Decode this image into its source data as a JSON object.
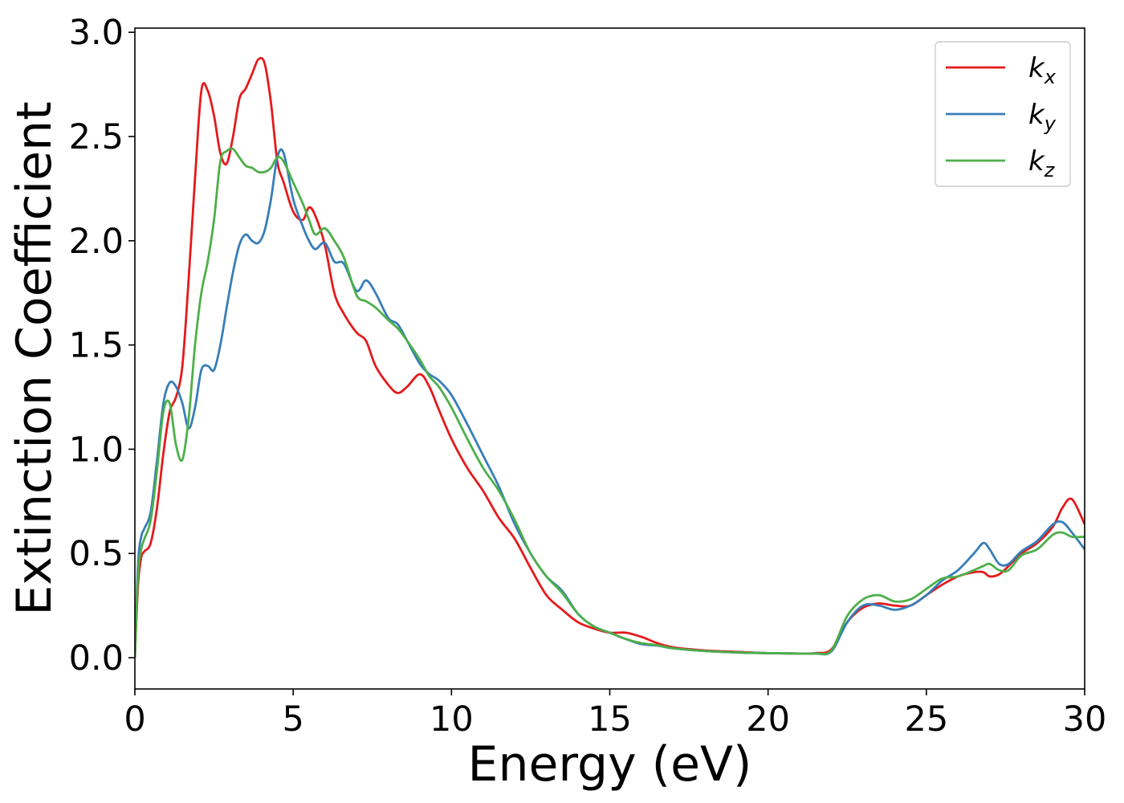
{
  "chart_data": {
    "type": "line",
    "title": "",
    "xlabel": "Energy (eV)",
    "ylabel": "Extinction Coefficient",
    "xlim": [
      0,
      30
    ],
    "ylim": [
      -0.15,
      3.02
    ],
    "xticks": [
      0,
      5,
      10,
      15,
      20,
      25,
      30
    ],
    "xtick_labels": [
      "0",
      "5",
      "10",
      "15",
      "20",
      "25",
      "30"
    ],
    "yticks": [
      0.0,
      0.5,
      1.0,
      1.5,
      2.0,
      2.5,
      3.0
    ],
    "ytick_labels": [
      "0.0",
      "0.5",
      "1.0",
      "1.5",
      "2.0",
      "2.5",
      "3.0"
    ],
    "grid": false,
    "legend_position": "top-right",
    "series": [
      {
        "name": "k",
        "subscript": "x",
        "color": "#e41a1c",
        "x": [
          0,
          0.1,
          0.2,
          0.3,
          0.5,
          0.7,
          0.9,
          1.1,
          1.3,
          1.5,
          1.7,
          1.9,
          2.1,
          2.3,
          2.5,
          2.7,
          2.9,
          3.1,
          3.3,
          3.5,
          3.7,
          3.9,
          4.1,
          4.3,
          4.5,
          4.7,
          5.0,
          5.3,
          5.5,
          5.7,
          6.0,
          6.3,
          6.6,
          7.0,
          7.3,
          7.6,
          8.0,
          8.3,
          8.6,
          9.0,
          9.3,
          9.6,
          10.0,
          10.5,
          11.0,
          11.5,
          12.0,
          12.5,
          13.0,
          13.5,
          14.0,
          14.5,
          15.0,
          15.5,
          16.0,
          16.5,
          17.0,
          18.0,
          19.0,
          20.0,
          21.0,
          21.5,
          22.0,
          22.5,
          23.0,
          23.5,
          24.0,
          24.5,
          25.0,
          25.5,
          26.0,
          26.5,
          26.8,
          27.0,
          27.3,
          27.6,
          28.0,
          28.5,
          29.0,
          29.3,
          29.6,
          30.0
        ],
        "y": [
          0.0,
          0.35,
          0.48,
          0.51,
          0.55,
          0.72,
          0.98,
          1.18,
          1.25,
          1.4,
          1.82,
          2.3,
          2.72,
          2.72,
          2.6,
          2.42,
          2.37,
          2.5,
          2.68,
          2.73,
          2.8,
          2.87,
          2.85,
          2.66,
          2.38,
          2.28,
          2.14,
          2.1,
          2.16,
          2.12,
          1.98,
          1.75,
          1.65,
          1.56,
          1.52,
          1.4,
          1.31,
          1.27,
          1.3,
          1.36,
          1.3,
          1.19,
          1.05,
          0.91,
          0.8,
          0.67,
          0.57,
          0.43,
          0.3,
          0.23,
          0.17,
          0.14,
          0.12,
          0.12,
          0.1,
          0.07,
          0.05,
          0.035,
          0.028,
          0.022,
          0.02,
          0.022,
          0.04,
          0.17,
          0.24,
          0.26,
          0.25,
          0.25,
          0.3,
          0.35,
          0.39,
          0.41,
          0.41,
          0.39,
          0.4,
          0.44,
          0.5,
          0.55,
          0.63,
          0.72,
          0.76,
          0.64
        ]
      },
      {
        "name": "k",
        "subscript": "y",
        "color": "#377eb8",
        "x": [
          0,
          0.1,
          0.2,
          0.3,
          0.5,
          0.7,
          0.9,
          1.1,
          1.3,
          1.5,
          1.7,
          1.9,
          2.1,
          2.3,
          2.5,
          2.7,
          2.9,
          3.1,
          3.3,
          3.5,
          3.7,
          3.9,
          4.1,
          4.3,
          4.5,
          4.7,
          5.0,
          5.3,
          5.5,
          5.7,
          6.0,
          6.3,
          6.6,
          7.0,
          7.3,
          7.6,
          8.0,
          8.3,
          8.6,
          9.0,
          9.3,
          9.6,
          10.0,
          10.5,
          11.0,
          11.5,
          12.0,
          12.5,
          13.0,
          13.5,
          14.0,
          14.5,
          15.0,
          15.5,
          16.0,
          16.5,
          17.0,
          18.0,
          19.0,
          20.0,
          21.0,
          21.5,
          22.0,
          22.5,
          23.0,
          23.5,
          24.0,
          24.5,
          25.0,
          25.5,
          26.0,
          26.5,
          26.8,
          27.0,
          27.3,
          27.6,
          28.0,
          28.5,
          29.0,
          29.3,
          29.6,
          30.0
        ],
        "y": [
          0.0,
          0.45,
          0.58,
          0.62,
          0.7,
          0.95,
          1.22,
          1.32,
          1.3,
          1.22,
          1.1,
          1.2,
          1.38,
          1.4,
          1.38,
          1.5,
          1.68,
          1.85,
          1.98,
          2.03,
          2.0,
          1.99,
          2.05,
          2.2,
          2.4,
          2.42,
          2.2,
          2.07,
          2.0,
          1.96,
          1.99,
          1.9,
          1.89,
          1.76,
          1.81,
          1.75,
          1.63,
          1.6,
          1.52,
          1.41,
          1.36,
          1.33,
          1.26,
          1.12,
          0.97,
          0.82,
          0.64,
          0.5,
          0.39,
          0.32,
          0.21,
          0.15,
          0.12,
          0.09,
          0.065,
          0.058,
          0.045,
          0.032,
          0.025,
          0.022,
          0.02,
          0.02,
          0.03,
          0.17,
          0.25,
          0.25,
          0.23,
          0.25,
          0.3,
          0.37,
          0.42,
          0.5,
          0.55,
          0.52,
          0.45,
          0.45,
          0.51,
          0.56,
          0.64,
          0.65,
          0.6,
          0.52
        ]
      },
      {
        "name": "k",
        "subscript": "z",
        "color": "#4daf4a",
        "x": [
          0,
          0.1,
          0.2,
          0.3,
          0.5,
          0.7,
          0.9,
          1.1,
          1.3,
          1.5,
          1.7,
          1.9,
          2.1,
          2.3,
          2.5,
          2.7,
          2.9,
          3.1,
          3.3,
          3.5,
          3.7,
          3.9,
          4.1,
          4.3,
          4.5,
          4.7,
          5.0,
          5.3,
          5.5,
          5.7,
          6.0,
          6.3,
          6.6,
          7.0,
          7.3,
          7.6,
          8.0,
          8.3,
          8.6,
          9.0,
          9.3,
          9.6,
          10.0,
          10.5,
          11.0,
          11.5,
          12.0,
          12.5,
          13.0,
          13.5,
          14.0,
          14.5,
          15.0,
          15.5,
          16.0,
          16.5,
          17.0,
          18.0,
          19.0,
          20.0,
          21.0,
          21.5,
          22.0,
          22.5,
          23.0,
          23.5,
          24.0,
          24.5,
          25.0,
          25.5,
          26.0,
          26.5,
          26.8,
          27.0,
          27.3,
          27.6,
          28.0,
          28.5,
          29.0,
          29.3,
          29.6,
          30.0
        ],
        "y": [
          0.0,
          0.4,
          0.52,
          0.57,
          0.66,
          0.9,
          1.18,
          1.22,
          1.02,
          0.95,
          1.15,
          1.5,
          1.75,
          1.9,
          2.1,
          2.38,
          2.43,
          2.44,
          2.4,
          2.36,
          2.35,
          2.33,
          2.33,
          2.35,
          2.4,
          2.38,
          2.28,
          2.18,
          2.1,
          2.03,
          2.06,
          2.0,
          1.92,
          1.74,
          1.71,
          1.68,
          1.62,
          1.58,
          1.52,
          1.43,
          1.35,
          1.3,
          1.2,
          1.05,
          0.91,
          0.8,
          0.66,
          0.5,
          0.39,
          0.31,
          0.21,
          0.15,
          0.12,
          0.09,
          0.07,
          0.06,
          0.045,
          0.032,
          0.025,
          0.022,
          0.02,
          0.02,
          0.035,
          0.2,
          0.28,
          0.3,
          0.27,
          0.28,
          0.33,
          0.38,
          0.39,
          0.42,
          0.44,
          0.45,
          0.42,
          0.42,
          0.49,
          0.52,
          0.59,
          0.6,
          0.58,
          0.58
        ]
      }
    ]
  }
}
